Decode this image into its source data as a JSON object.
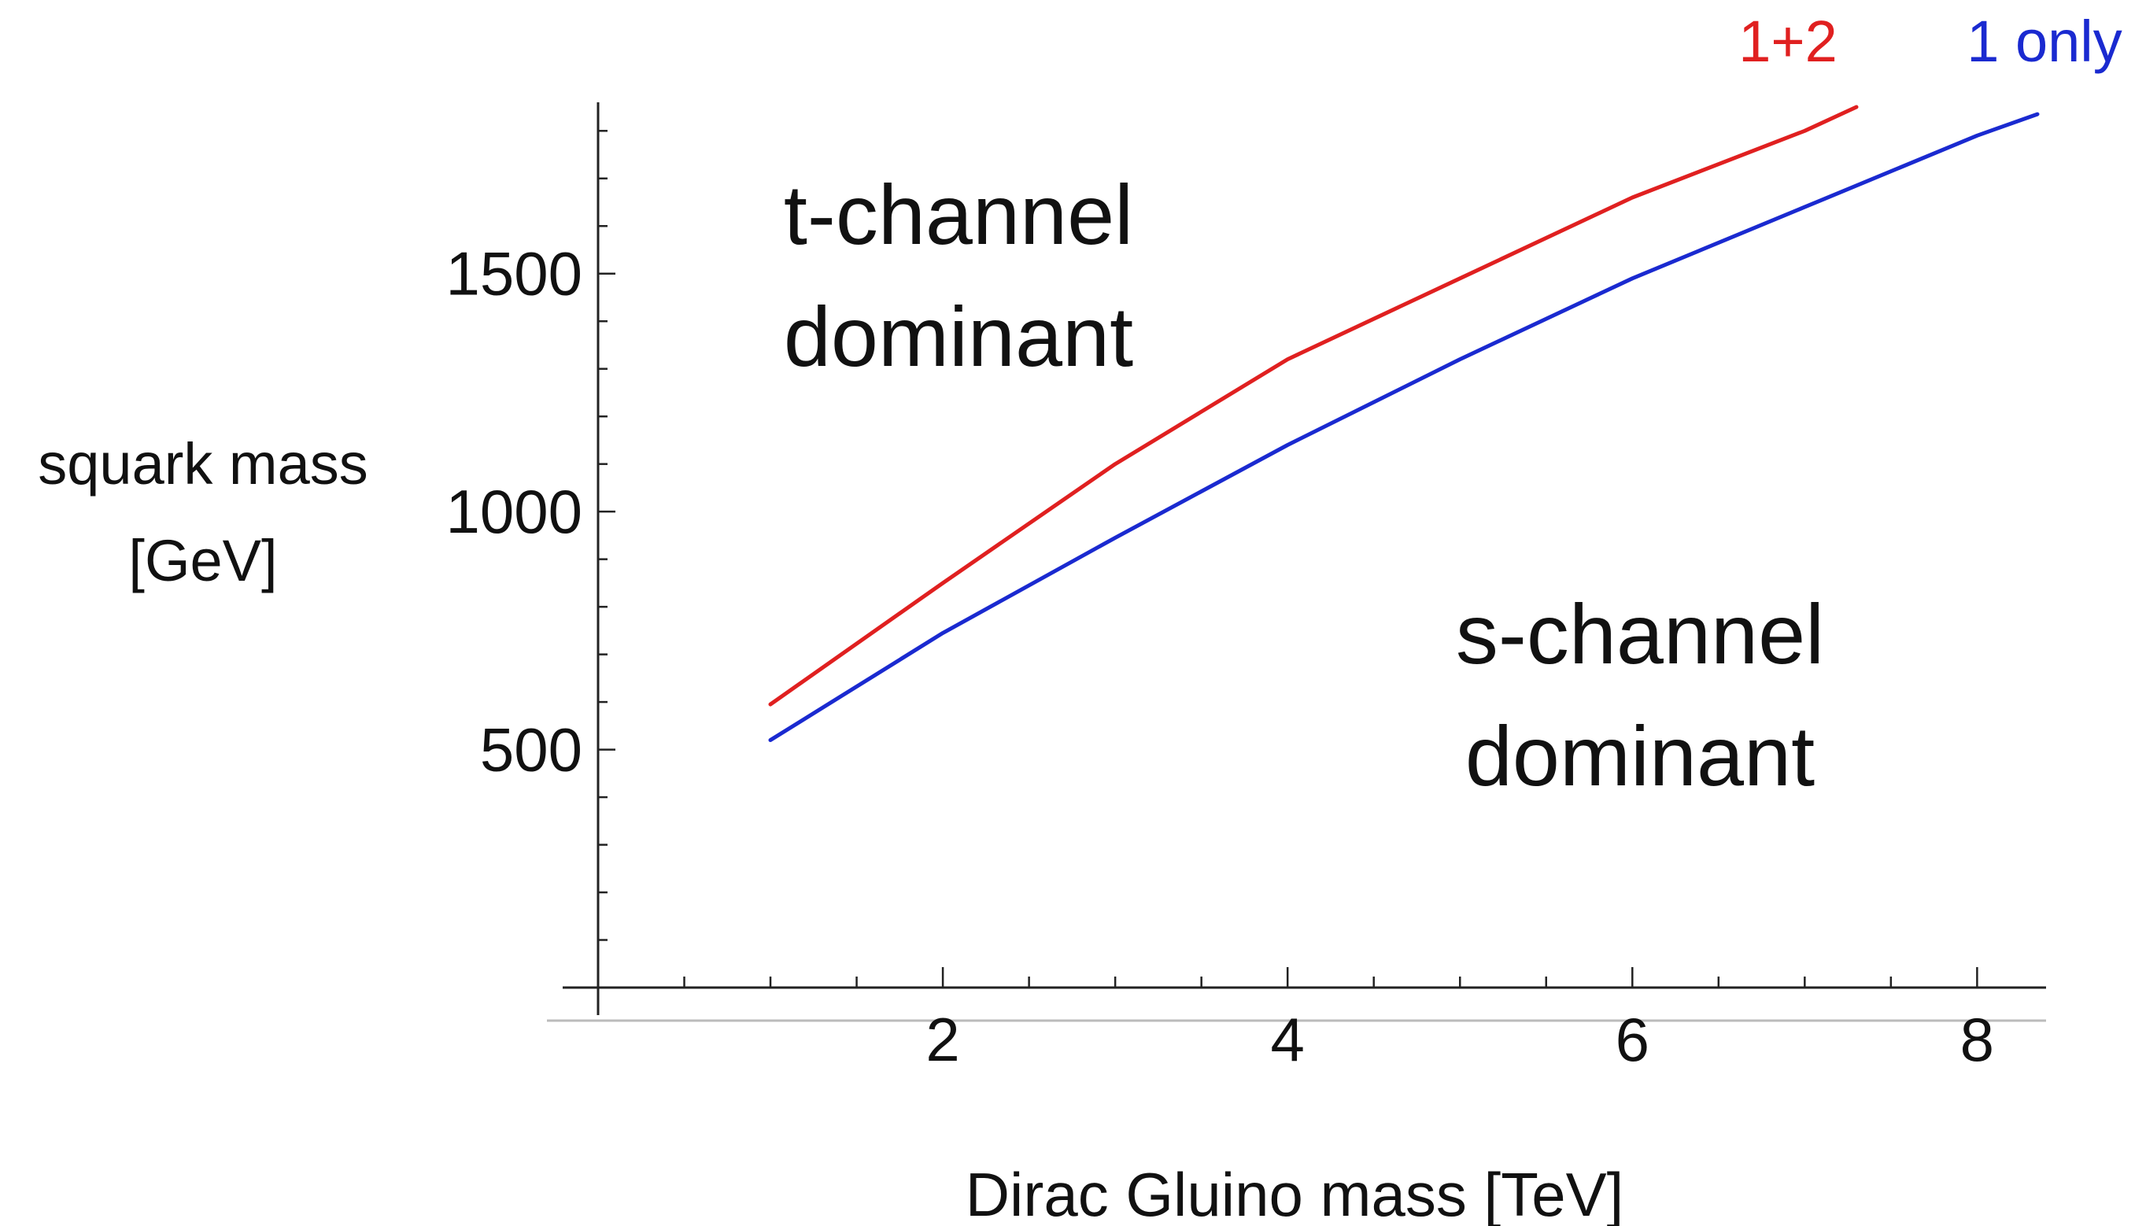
{
  "chart_data": {
    "type": "line",
    "xlabel": "Dirac Gluino mass [TeV]",
    "ylabel_line1": "squark mass",
    "ylabel_line2": "[GeV]",
    "xlim": [
      0,
      8.4
    ],
    "ylim": [
      0,
      1860
    ],
    "x_ticks": [
      2,
      4,
      6,
      8
    ],
    "y_ticks": [
      500,
      1000,
      1500
    ],
    "series": [
      {
        "name": "1+2",
        "color": "#e02020",
        "x": [
          1,
          2,
          3,
          4,
          5,
          6,
          7,
          7.3
        ],
        "y": [
          595,
          850,
          1100,
          1320,
          1490,
          1660,
          1800,
          1850
        ]
      },
      {
        "name": "1 only",
        "color": "#1a2ad0",
        "x": [
          1,
          2,
          3,
          4,
          5,
          6,
          7,
          8,
          8.35
        ],
        "y": [
          520,
          745,
          945,
          1140,
          1320,
          1490,
          1640,
          1790,
          1835
        ]
      }
    ],
    "annotations": {
      "upper_line1": "t-channel",
      "upper_line2": "dominant",
      "lower_line1": "s-channel",
      "lower_line2": "dominant"
    },
    "grid": false,
    "legend_position": "top-right"
  }
}
